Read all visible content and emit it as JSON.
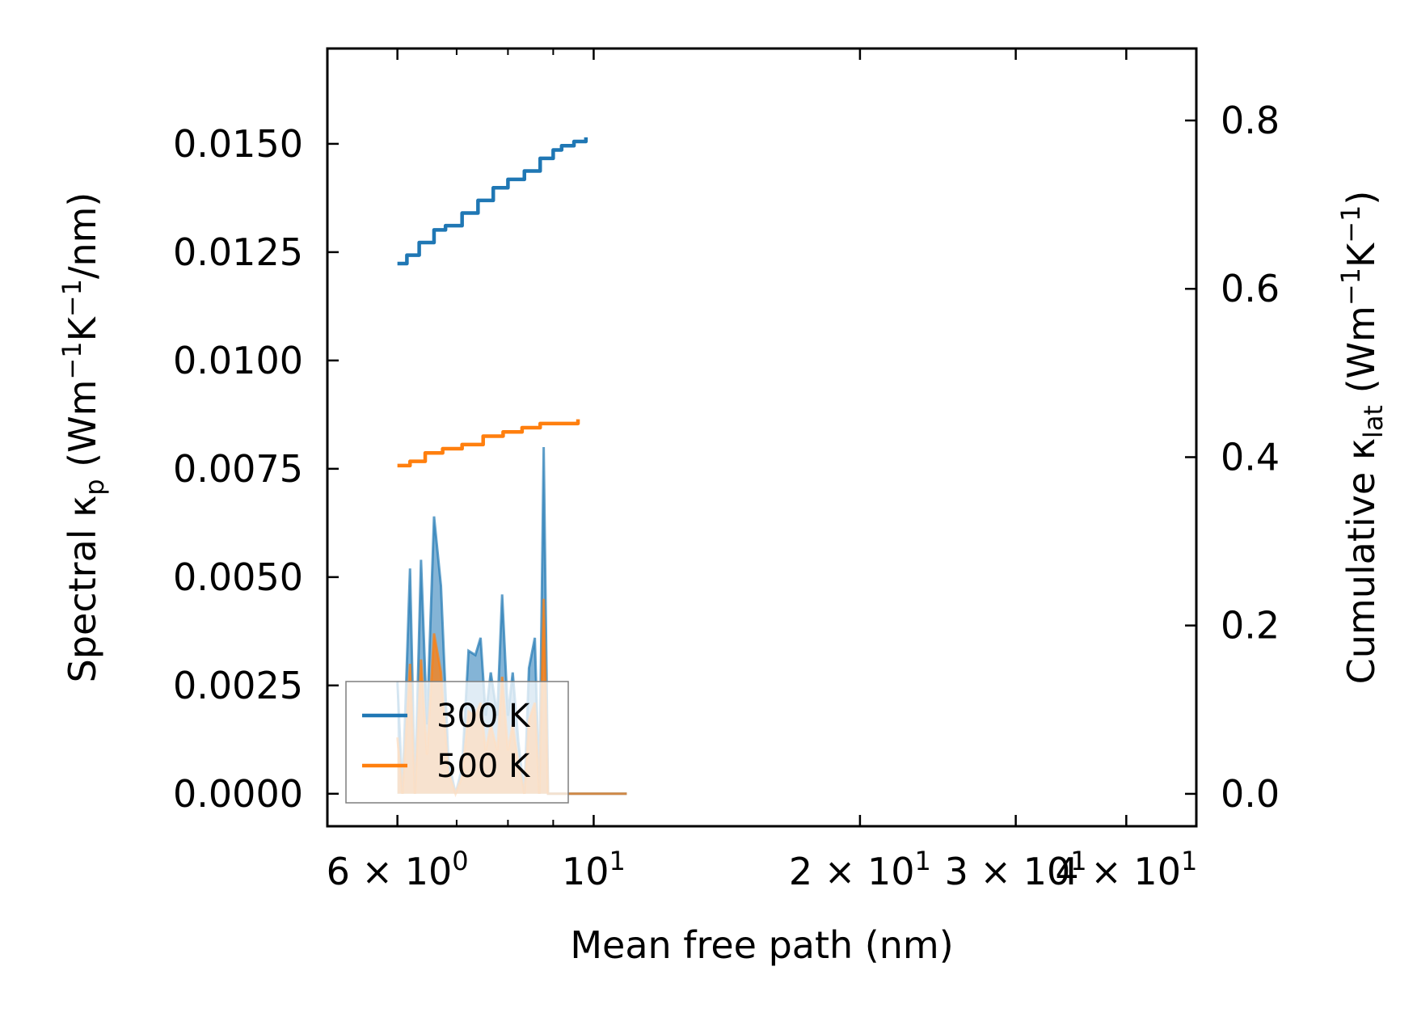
{
  "chart_data": {
    "type": "area",
    "xscale": "log",
    "xlim": [
      5.0,
      48.0
    ],
    "ylim_left": [
      -0.00075,
      0.0172
    ],
    "ylim_right": [
      -0.0385,
      0.8855
    ],
    "xlabel": "Mean free path (nm)",
    "ylabel_left": {
      "main": "Spectral κ",
      "sub": "p",
      "units_a": " (Wm",
      "sup1": "−1",
      "units_b": "K",
      "sup2": "−1",
      "units_c": "/nm)"
    },
    "ylabel_right": {
      "main": "Cumulative κ",
      "sub": "lat",
      "units_a": " (Wm",
      "sup1": "−1",
      "units_b": "K",
      "sup2": "−1",
      "units_c": ")"
    },
    "x_ticks": [
      {
        "value": 6,
        "mantissa": "6",
        "base": "10",
        "exp": "0"
      },
      {
        "value": 10,
        "mantissa": "",
        "base": "10",
        "exp": "1"
      },
      {
        "value": 20,
        "mantissa": "2",
        "base": "10",
        "exp": "1"
      },
      {
        "value": 30,
        "mantissa": "3",
        "base": "10",
        "exp": "1"
      },
      {
        "value": 40,
        "mantissa": "4",
        "base": "10",
        "exp": "1"
      }
    ],
    "x_minor_ticks": [
      7,
      8,
      9
    ],
    "y_left_ticks": [
      {
        "value": 0.0,
        "label": "0.0000"
      },
      {
        "value": 0.0025,
        "label": "0.0025"
      },
      {
        "value": 0.005,
        "label": "0.0050"
      },
      {
        "value": 0.0075,
        "label": "0.0075"
      },
      {
        "value": 0.01,
        "label": "0.0100"
      },
      {
        "value": 0.0125,
        "label": "0.0125"
      },
      {
        "value": 0.015,
        "label": "0.0150"
      }
    ],
    "y_right_ticks": [
      {
        "value": 0.0,
        "label": "0.0"
      },
      {
        "value": 0.2,
        "label": "0.2"
      },
      {
        "value": 0.4,
        "label": "0.4"
      },
      {
        "value": 0.6,
        "label": "0.6"
      },
      {
        "value": 0.8,
        "label": "0.8"
      }
    ],
    "legend": {
      "position": "lower-left",
      "entries": [
        "300 K",
        "500 K"
      ]
    },
    "series": [
      {
        "name": "300 K",
        "color": "#1f77b4",
        "spectral": [
          [
            6.0,
            0.0026
          ],
          [
            6.08,
            0.0
          ],
          [
            6.2,
            0.0052
          ],
          [
            6.28,
            0.0
          ],
          [
            6.38,
            0.0054
          ],
          [
            6.48,
            0.0016
          ],
          [
            6.6,
            0.0064
          ],
          [
            6.72,
            0.0048
          ],
          [
            6.85,
            0.0008
          ],
          [
            6.98,
            0.0
          ],
          [
            7.1,
            0.0006
          ],
          [
            7.22,
            0.0033
          ],
          [
            7.35,
            0.0032
          ],
          [
            7.45,
            0.0036
          ],
          [
            7.55,
            0.0018
          ],
          [
            7.65,
            0.0028
          ],
          [
            7.78,
            0.0018
          ],
          [
            7.88,
            0.0046
          ],
          [
            8.0,
            0.0018
          ],
          [
            8.1,
            0.0028
          ],
          [
            8.22,
            0.0012
          ],
          [
            8.35,
            0.0
          ],
          [
            8.45,
            0.0029
          ],
          [
            8.58,
            0.0036
          ],
          [
            8.68,
            0.0
          ],
          [
            8.78,
            0.008
          ],
          [
            8.88,
            0.0
          ],
          [
            9.05,
            0.0
          ],
          [
            9.25,
            0.0
          ],
          [
            9.4,
            0.0
          ],
          [
            9.6,
            0.0
          ],
          [
            9.78,
            0.0
          ],
          [
            9.95,
            0.0
          ],
          [
            10.15,
            0.0
          ],
          [
            10.3,
            0.0
          ],
          [
            10.5,
            0.0
          ],
          [
            10.75,
            0.0
          ],
          [
            10.9,
            0.0
          ]
        ],
        "cumulative": [
          [
            6.0,
            0.63
          ],
          [
            6.15,
            0.64
          ],
          [
            6.35,
            0.655
          ],
          [
            6.6,
            0.67
          ],
          [
            6.8,
            0.675
          ],
          [
            7.1,
            0.69
          ],
          [
            7.4,
            0.705
          ],
          [
            7.7,
            0.72
          ],
          [
            8.0,
            0.73
          ],
          [
            8.35,
            0.74
          ],
          [
            8.7,
            0.755
          ],
          [
            9.0,
            0.765
          ],
          [
            9.2,
            0.77
          ],
          [
            9.5,
            0.775
          ],
          [
            9.8,
            0.78
          ]
        ]
      },
      {
        "name": "500 K",
        "color": "#ff7f0e",
        "spectral": [
          [
            6.0,
            0.0013
          ],
          [
            6.08,
            0.0
          ],
          [
            6.2,
            0.003
          ],
          [
            6.28,
            0.0
          ],
          [
            6.38,
            0.0031
          ],
          [
            6.48,
            0.0009
          ],
          [
            6.6,
            0.0037
          ],
          [
            6.72,
            0.0028
          ],
          [
            6.85,
            0.0005
          ],
          [
            6.98,
            0.0
          ],
          [
            7.1,
            0.0004
          ],
          [
            7.22,
            0.0019
          ],
          [
            7.35,
            0.0018
          ],
          [
            7.45,
            0.0021
          ],
          [
            7.55,
            0.001
          ],
          [
            7.65,
            0.0016
          ],
          [
            7.78,
            0.001
          ],
          [
            7.88,
            0.0027
          ],
          [
            8.0,
            0.001
          ],
          [
            8.1,
            0.0016
          ],
          [
            8.22,
            0.0007
          ],
          [
            8.35,
            0.0
          ],
          [
            8.45,
            0.0017
          ],
          [
            8.58,
            0.0021
          ],
          [
            8.68,
            0.0
          ],
          [
            8.78,
            0.0045
          ],
          [
            8.88,
            0.0
          ],
          [
            9.05,
            0.0
          ],
          [
            9.25,
            0.0
          ],
          [
            9.4,
            0.0
          ],
          [
            9.6,
            0.0
          ],
          [
            9.78,
            0.0
          ],
          [
            9.95,
            0.0
          ],
          [
            10.15,
            0.0
          ],
          [
            10.3,
            0.0
          ],
          [
            10.5,
            0.0
          ],
          [
            10.75,
            0.0
          ],
          [
            10.9,
            0.0
          ]
        ],
        "cumulative": [
          [
            6.0,
            0.39
          ],
          [
            6.2,
            0.395
          ],
          [
            6.45,
            0.405
          ],
          [
            6.75,
            0.41
          ],
          [
            7.1,
            0.415
          ],
          [
            7.5,
            0.425
          ],
          [
            7.9,
            0.43
          ],
          [
            8.3,
            0.435
          ],
          [
            8.7,
            0.44
          ],
          [
            9.1,
            0.44
          ],
          [
            9.6,
            0.445
          ]
        ]
      }
    ]
  }
}
